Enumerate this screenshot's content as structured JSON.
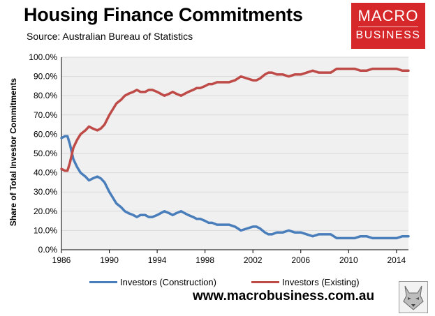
{
  "header": {
    "title": "Housing Finance Commitments",
    "source": "Source: Australian Bureau of Statistics"
  },
  "logo": {
    "line1": "MACRO",
    "line2": "BUSINESS"
  },
  "footer": {
    "website": "www.macrobusiness.com.au"
  },
  "colors": {
    "construction": "#4a7ebb",
    "existing": "#be4b48",
    "plot_bg": "#f0f0f0",
    "brand": "#d6282b"
  },
  "chart_data": {
    "type": "line",
    "title": "Housing Finance Commitments",
    "xlabel": "",
    "ylabel": "Share of Total Investor Commitments",
    "xlim": [
      1986,
      2015
    ],
    "ylim": [
      0,
      100
    ],
    "x_ticks": [
      1986,
      1990,
      1994,
      1998,
      2002,
      2006,
      2010,
      2014
    ],
    "x_tick_labels": [
      "1986",
      "1990",
      "1994",
      "1998",
      "2002",
      "2006",
      "2010",
      "2014"
    ],
    "y_ticks": [
      0,
      10,
      20,
      30,
      40,
      50,
      60,
      70,
      80,
      90,
      100
    ],
    "y_tick_labels": [
      "0.0%",
      "10.0%",
      "20.0%",
      "30.0%",
      "40.0%",
      "50.0%",
      "60.0%",
      "70.0%",
      "80.0%",
      "90.0%",
      "100.0%"
    ],
    "grid": "horizontal",
    "legend": "bottom",
    "series": [
      {
        "name": "Investors (Construction)",
        "color": "#4a7ebb",
        "x": [
          1986.0,
          1986.3,
          1986.5,
          1986.7,
          1987.0,
          1987.3,
          1987.6,
          1988.0,
          1988.3,
          1988.6,
          1989.0,
          1989.3,
          1989.6,
          1990.0,
          1990.3,
          1990.6,
          1991.0,
          1991.3,
          1991.6,
          1992.0,
          1992.3,
          1992.6,
          1993.0,
          1993.3,
          1993.6,
          1994.0,
          1994.3,
          1994.6,
          1995.0,
          1995.3,
          1995.6,
          1996.0,
          1996.3,
          1996.6,
          1997.0,
          1997.3,
          1997.6,
          1998.0,
          1998.3,
          1998.6,
          1999.0,
          1999.5,
          2000.0,
          2000.5,
          2001.0,
          2001.5,
          2002.0,
          2002.3,
          2002.6,
          2003.0,
          2003.3,
          2003.6,
          2004.0,
          2004.5,
          2005.0,
          2005.5,
          2006.0,
          2006.5,
          2007.0,
          2007.5,
          2008.0,
          2008.5,
          2009.0,
          2009.5,
          2010.0,
          2010.5,
          2011.0,
          2011.5,
          2012.0,
          2012.5,
          2013.0,
          2013.5,
          2014.0,
          2014.5,
          2015.0
        ],
        "values": [
          58,
          59,
          59,
          55,
          47,
          43,
          40,
          38,
          36,
          37,
          38,
          37,
          35,
          30,
          27,
          24,
          22,
          20,
          19,
          18,
          17,
          18,
          18,
          17,
          17,
          18,
          19,
          20,
          19,
          18,
          19,
          20,
          19,
          18,
          17,
          16,
          16,
          15,
          14,
          14,
          13,
          13,
          13,
          12,
          10,
          11,
          12,
          12,
          11,
          9,
          8,
          8,
          9,
          9,
          10,
          9,
          9,
          8,
          7,
          8,
          8,
          8,
          6,
          6,
          6,
          6,
          7,
          7,
          6,
          6,
          6,
          6,
          6,
          7,
          7
        ]
      },
      {
        "name": "Investors (Existing)",
        "color": "#be4b48",
        "x": [
          1986.0,
          1986.3,
          1986.5,
          1986.7,
          1987.0,
          1987.3,
          1987.6,
          1988.0,
          1988.3,
          1988.6,
          1989.0,
          1989.3,
          1989.6,
          1990.0,
          1990.3,
          1990.6,
          1991.0,
          1991.3,
          1991.6,
          1992.0,
          1992.3,
          1992.6,
          1993.0,
          1993.3,
          1993.6,
          1994.0,
          1994.3,
          1994.6,
          1995.0,
          1995.3,
          1995.6,
          1996.0,
          1996.3,
          1996.6,
          1997.0,
          1997.3,
          1997.6,
          1998.0,
          1998.3,
          1998.6,
          1999.0,
          1999.5,
          2000.0,
          2000.5,
          2001.0,
          2001.5,
          2002.0,
          2002.3,
          2002.6,
          2003.0,
          2003.3,
          2003.6,
          2004.0,
          2004.5,
          2005.0,
          2005.5,
          2006.0,
          2006.5,
          2007.0,
          2007.5,
          2008.0,
          2008.5,
          2009.0,
          2009.5,
          2010.0,
          2010.5,
          2011.0,
          2011.5,
          2012.0,
          2012.5,
          2013.0,
          2013.5,
          2014.0,
          2014.5,
          2015.0
        ],
        "values": [
          42,
          41,
          41,
          45,
          53,
          57,
          60,
          62,
          64,
          63,
          62,
          63,
          65,
          70,
          73,
          76,
          78,
          80,
          81,
          82,
          83,
          82,
          82,
          83,
          83,
          82,
          81,
          80,
          81,
          82,
          81,
          80,
          81,
          82,
          83,
          84,
          84,
          85,
          86,
          86,
          87,
          87,
          87,
          88,
          90,
          89,
          88,
          88,
          89,
          91,
          92,
          92,
          91,
          91,
          90,
          91,
          91,
          92,
          93,
          92,
          92,
          92,
          94,
          94,
          94,
          94,
          93,
          93,
          94,
          94,
          94,
          94,
          94,
          93,
          93
        ]
      }
    ]
  }
}
